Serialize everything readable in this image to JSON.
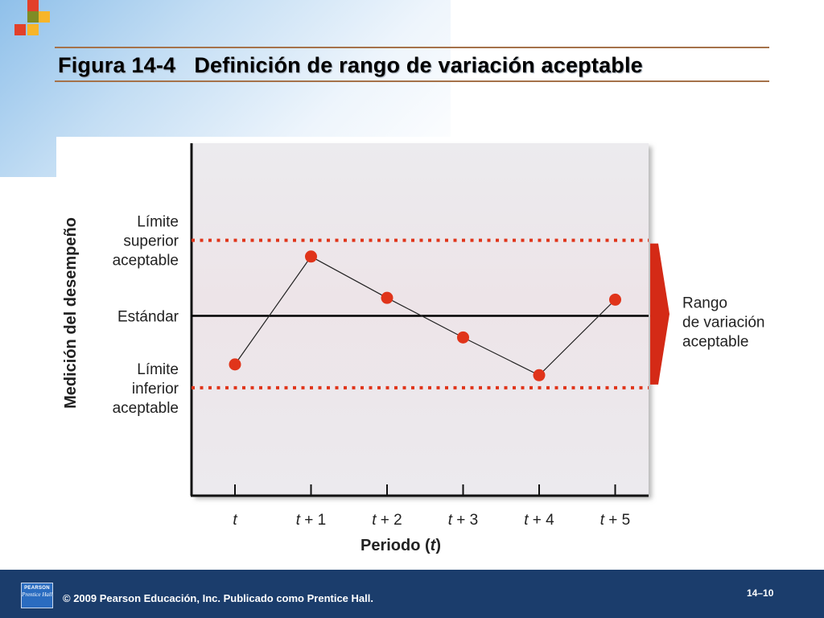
{
  "slide": {
    "title": "Figura 14-4   Definición de rango de variación aceptable"
  },
  "footer": {
    "logo_line1": "PEARSON",
    "logo_line2": "Prentice Hall",
    "copyright": "© 2009 Pearson Educación, Inc. Publicado como Prentice Hall.",
    "page_number": "14–10"
  },
  "colors": {
    "points": "#e0341a",
    "limit_lines": "#e0341a",
    "standard_line": "#000000",
    "range_arrow": "#d42a16",
    "footer_bg": "#1b3d6c",
    "title_rule": "#a5724a",
    "logo_squares": [
      "#e2402a",
      "#f7b52a",
      "#7f8c25",
      "#e2402a",
      "#f7b52a"
    ]
  },
  "chart_data": {
    "type": "line",
    "xlabel": "Periodo (t)",
    "ylabel": "Medición del desempeño",
    "categories": [
      "t",
      "t + 1",
      "t + 2",
      "t + 3",
      "t + 4",
      "t + 5"
    ],
    "values": [
      -1.35,
      1.65,
      0.5,
      -0.6,
      -1.65,
      0.45
    ],
    "ylim": [
      -5,
      4.8
    ],
    "grid": false,
    "reference_lines": [
      {
        "label": "Límite\nsuperior\naceptable",
        "value": 2.1,
        "style": "dotted"
      },
      {
        "label": "Estándar",
        "value": 0,
        "style": "solid"
      },
      {
        "label": "Límite\ninferior\naceptable",
        "value": -2.0,
        "style": "dotted"
      }
    ],
    "range_annotation": {
      "label": "Rango\nde variación\naceptable",
      "from": -2.0,
      "to": 2.1
    }
  }
}
